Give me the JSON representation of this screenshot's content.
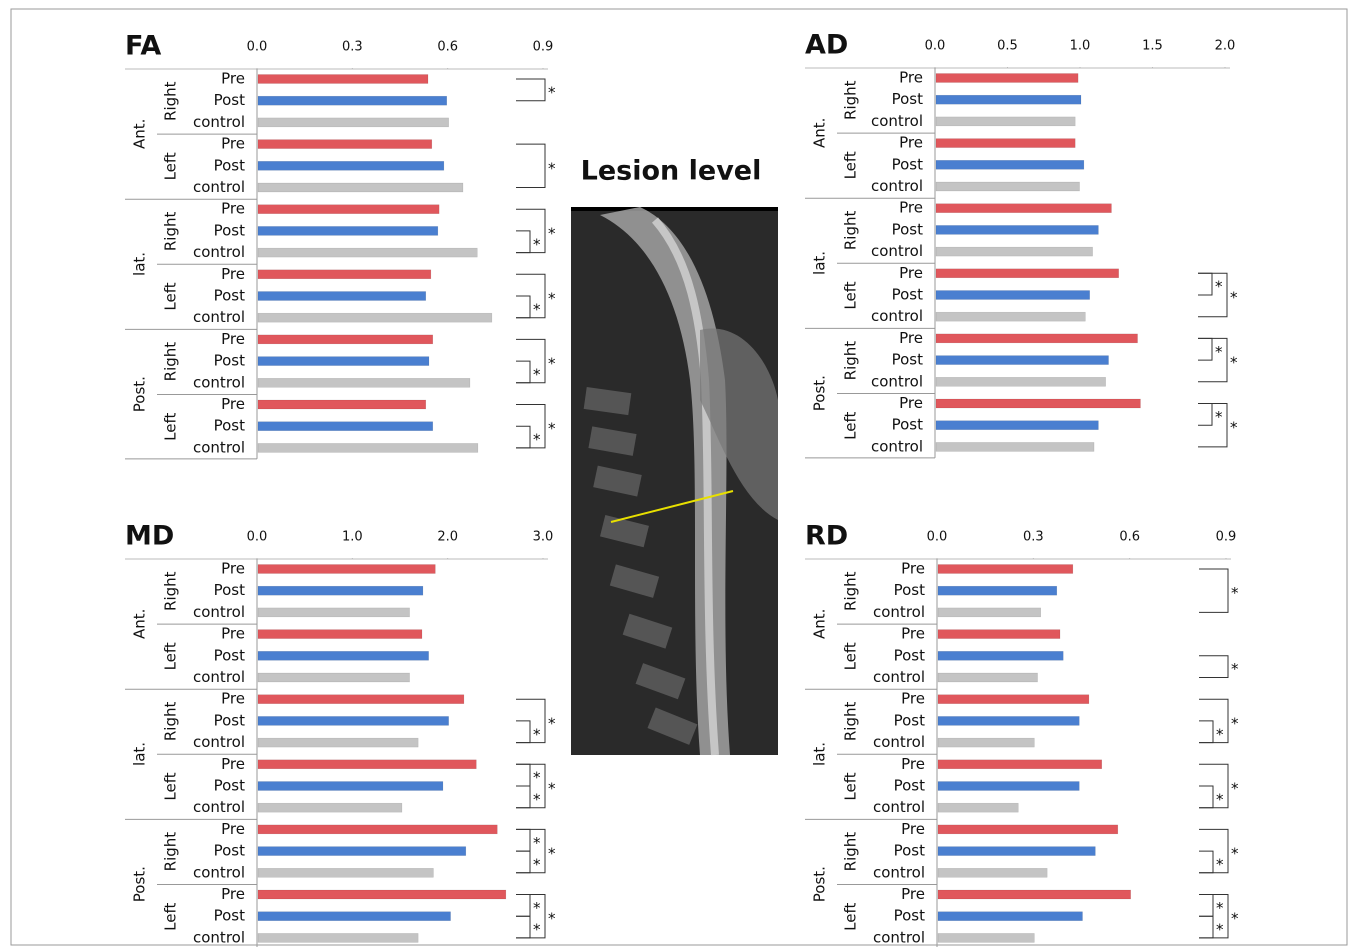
{
  "chart_data": [
    {
      "type": "bar",
      "title": "FA",
      "xlim": [
        0,
        0.9
      ],
      "xticks": [
        {
          "value": 0,
          "label": "0.0"
        },
        0.3,
        0.6,
        0.9
      ],
      "regions": [
        "Ant.",
        "lat.",
        "Post."
      ],
      "sides": [
        "Right",
        "Left",
        "Right",
        "Left",
        "Right",
        "Left"
      ],
      "categories": [
        "Pre",
        "Post",
        "control",
        "Pre",
        "Post",
        "control",
        "Pre",
        "Post",
        "control",
        "Pre",
        "Post",
        "control",
        "Pre",
        "Post",
        "control",
        "Pre",
        "Post",
        "control"
      ],
      "values": [
        0.535,
        0.594,
        0.6,
        0.547,
        0.585,
        0.645,
        0.57,
        0.566,
        0.69,
        0.544,
        0.528,
        0.736,
        0.55,
        0.538,
        0.667,
        0.528,
        0.55,
        0.692
      ],
      "bar_colors": [
        "#e0575c",
        "#4a7fd0",
        "#c4c4c4"
      ],
      "brackets": [
        {
          "from": 0,
          "to": 1,
          "label": "*"
        },
        {
          "from": 3,
          "to": 5,
          "label": "*"
        },
        {
          "from": 6,
          "to": 8,
          "label": "*"
        },
        {
          "from": 7,
          "to": 8,
          "label": "*"
        },
        {
          "from": 9,
          "to": 11,
          "label": "*"
        },
        {
          "from": 10,
          "to": 11,
          "label": "*"
        },
        {
          "from": 12,
          "to": 14,
          "label": "*"
        },
        {
          "from": 13,
          "to": 14,
          "label": "*"
        },
        {
          "from": 15,
          "to": 17,
          "label": "*"
        },
        {
          "from": 16,
          "to": 17,
          "label": "*"
        }
      ]
    },
    {
      "type": "bar",
      "title": "AD",
      "xlim": [
        0,
        2
      ],
      "xticks": [
        {
          "value": 0,
          "label": "0.0"
        },
        0.5,
        {
          "value": 1,
          "label": "1.0"
        },
        1.5,
        {
          "value": 2,
          "label": "2.0"
        }
      ],
      "regions": [
        "Ant.",
        "lat.",
        "Post."
      ],
      "sides": [
        "Right",
        "Left",
        "Right",
        "Left",
        "Right",
        "Left"
      ],
      "categories": [
        "Pre",
        "Post",
        "control",
        "Pre",
        "Post",
        "control",
        "Pre",
        "Post",
        "control",
        "Pre",
        "Post",
        "control",
        "Pre",
        "Post",
        "control",
        "Pre",
        "Post",
        "control"
      ],
      "values": [
        0.98,
        1.0,
        0.96,
        0.96,
        1.02,
        0.99,
        1.21,
        1.12,
        1.08,
        1.26,
        1.06,
        1.03,
        1.39,
        1.19,
        1.17,
        1.41,
        1.12,
        1.09
      ],
      "bar_colors": [
        "#e0575c",
        "#4a7fd0",
        "#c4c4c4"
      ],
      "brackets": [
        {
          "from": 9,
          "to": 11,
          "label": "*"
        },
        {
          "from": 9,
          "to": 10,
          "label": "*"
        },
        {
          "from": 12,
          "to": 14,
          "label": "*"
        },
        {
          "from": 12,
          "to": 13,
          "label": "*"
        },
        {
          "from": 15,
          "to": 17,
          "label": "*"
        },
        {
          "from": 15,
          "to": 16,
          "label": "*"
        }
      ]
    },
    {
      "type": "bar",
      "title": "MD",
      "xlim": [
        0,
        3
      ],
      "xticks": [
        {
          "value": 0,
          "label": "0.0"
        },
        {
          "value": 1,
          "label": "1.0"
        },
        {
          "value": 2,
          "label": "2.0"
        },
        {
          "value": 3,
          "label": "3.0"
        }
      ],
      "regions": [
        "Ant.",
        "lat.",
        "Post."
      ],
      "sides": [
        "Right",
        "Left",
        "Right",
        "Left",
        "Right",
        "Left"
      ],
      "categories": [
        "Pre",
        "Post",
        "control",
        "Pre",
        "Post",
        "control",
        "Pre",
        "Post",
        "control",
        "Pre",
        "Post",
        "control",
        "Pre",
        "Post",
        "control",
        "Pre",
        "Post",
        "control"
      ],
      "values": [
        1.86,
        1.73,
        1.59,
        1.72,
        1.79,
        1.59,
        2.16,
        2.0,
        1.68,
        2.29,
        1.94,
        1.51,
        2.51,
        2.18,
        1.84,
        2.6,
        2.02,
        1.68
      ],
      "bar_colors": [
        "#e0575c",
        "#4a7fd0",
        "#c4c4c4"
      ],
      "brackets": [
        {
          "from": 6,
          "to": 8,
          "label": "*"
        },
        {
          "from": 7,
          "to": 8,
          "label": "*"
        },
        {
          "from": 9,
          "to": 11,
          "label": "*"
        },
        {
          "from": 9,
          "to": 10,
          "label": "*"
        },
        {
          "from": 10,
          "to": 11,
          "label": "*"
        },
        {
          "from": 12,
          "to": 14,
          "label": "*"
        },
        {
          "from": 12,
          "to": 13,
          "label": "*"
        },
        {
          "from": 13,
          "to": 14,
          "label": "*"
        },
        {
          "from": 15,
          "to": 17,
          "label": "*"
        },
        {
          "from": 15,
          "to": 16,
          "label": "*"
        },
        {
          "from": 16,
          "to": 17,
          "label": "*"
        }
      ]
    },
    {
      "type": "bar",
      "title": "RD",
      "xlim": [
        0,
        0.9
      ],
      "xticks": [
        {
          "value": 0,
          "label": "0.0"
        },
        0.3,
        0.6,
        0.9
      ],
      "regions": [
        "Ant.",
        "lat.",
        "Post."
      ],
      "sides": [
        "Right",
        "Left",
        "Right",
        "Left",
        "Right",
        "Left"
      ],
      "categories": [
        "Pre",
        "Post",
        "control",
        "Pre",
        "Post",
        "control",
        "Pre",
        "Post",
        "control",
        "Pre",
        "Post",
        "control",
        "Pre",
        "Post",
        "control",
        "Pre",
        "Post",
        "control"
      ],
      "values": [
        0.42,
        0.37,
        0.32,
        0.38,
        0.39,
        0.31,
        0.47,
        0.44,
        0.3,
        0.51,
        0.44,
        0.25,
        0.56,
        0.49,
        0.34,
        0.6,
        0.45,
        0.3
      ],
      "bar_colors": [
        "#e0575c",
        "#4a7fd0",
        "#c4c4c4"
      ],
      "brackets": [
        {
          "from": 0,
          "to": 2,
          "label": "*"
        },
        {
          "from": 4,
          "to": 5,
          "label": "*"
        },
        {
          "from": 6,
          "to": 8,
          "label": "*"
        },
        {
          "from": 7,
          "to": 8,
          "label": "*"
        },
        {
          "from": 9,
          "to": 11,
          "label": "*"
        },
        {
          "from": 10,
          "to": 11,
          "label": "*"
        },
        {
          "from": 12,
          "to": 14,
          "label": "*"
        },
        {
          "from": 13,
          "to": 14,
          "label": "*"
        },
        {
          "from": 15,
          "to": 17,
          "label": "*"
        },
        {
          "from": 15,
          "to": 16,
          "label": "*"
        },
        {
          "from": 16,
          "to": 17,
          "label": "*"
        }
      ]
    }
  ],
  "image": {
    "title": "Lesion level"
  }
}
